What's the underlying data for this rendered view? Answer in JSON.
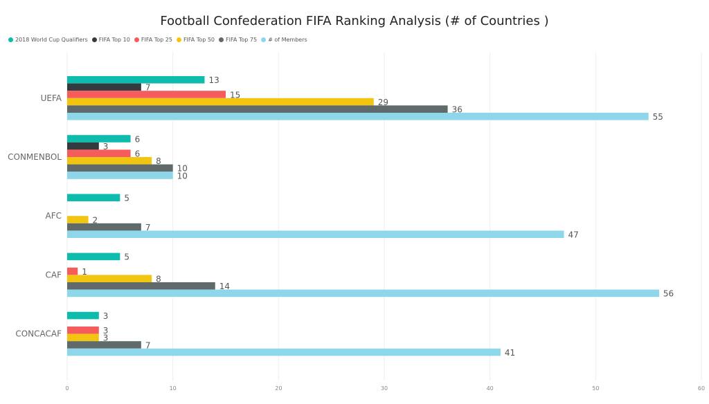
{
  "chart_data": {
    "type": "bar",
    "orientation": "horizontal",
    "title": "Football Confederation FIFA Ranking Analysis (# of Countries )",
    "categories": [
      "UEFA",
      "CONMENBOL",
      "AFC",
      "CAF",
      "CONCACAF"
    ],
    "series": [
      {
        "name": "2018 World Cup Qualifiers",
        "color": "#0ebcae",
        "values": [
          13,
          6,
          5,
          5,
          3
        ]
      },
      {
        "name": "FIFA Top 10",
        "color": "#333b3f",
        "values": [
          7,
          3,
          null,
          null,
          null
        ]
      },
      {
        "name": "FIFA Top 25",
        "color": "#f65c5b",
        "values": [
          15,
          6,
          null,
          1,
          3
        ]
      },
      {
        "name": "FIFA Top 50",
        "color": "#f2c511",
        "values": [
          29,
          8,
          2,
          8,
          3
        ]
      },
      {
        "name": "FIFA Top 75",
        "color": "#606a6a",
        "values": [
          36,
          10,
          7,
          14,
          7
        ]
      },
      {
        "name": "# of Members",
        "color": "#8ed6ea",
        "values": [
          55,
          10,
          47,
          56,
          41
        ]
      }
    ],
    "xlim": [
      0,
      60
    ],
    "xticks": [
      0,
      10,
      20,
      30,
      40,
      50,
      60
    ],
    "grid": true,
    "legend_position": "top-left",
    "data_labels": true
  }
}
